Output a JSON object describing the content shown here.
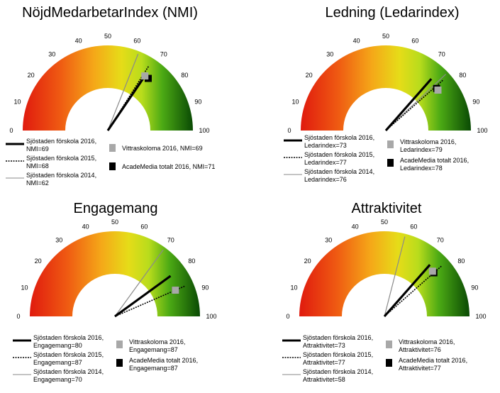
{
  "chart_data": [
    {
      "type": "gauge",
      "title": "NöjdMedarbetarIndex  (NMI)",
      "range": [
        0,
        100
      ],
      "ticks": [
        "0",
        "10",
        "20",
        "30",
        "40",
        "50",
        "60",
        "70",
        "80",
        "90",
        "100"
      ],
      "series": [
        {
          "name": "Sjöstaden förskola 2016, NMI=69",
          "value": 69,
          "style": "thick"
        },
        {
          "name": "Sjöstaden förskola 2015, NMI=68",
          "value": 68,
          "style": "dotted"
        },
        {
          "name": "Sjöstaden förskola 2014, NMI=62",
          "value": 62,
          "style": "thin"
        },
        {
          "name": "Vittraskoloma 2016, NMI=69",
          "value": 69,
          "style": "grey-square"
        },
        {
          "name": "AcadeMedia totalt 2016, NMI=71",
          "value": 71,
          "style": "black-square"
        }
      ]
    },
    {
      "type": "gauge",
      "title": "Ledning  (Ledarindex)",
      "range": [
        0,
        100
      ],
      "ticks": [
        "0",
        "10",
        "20",
        "30",
        "40",
        "50",
        "60",
        "70",
        "80",
        "90",
        "100"
      ],
      "series": [
        {
          "name": "Sjöstaden förskola 2016, Ledarindex=73",
          "value": 73,
          "style": "thick"
        },
        {
          "name": "Sjöstaden förskola 2015, Ledarindex=77",
          "value": 77,
          "style": "dotted"
        },
        {
          "name": "Sjöstaden förskola 2014, Ledarindex=76",
          "value": 76,
          "style": "thin"
        },
        {
          "name": "Vittraskoloma 2016, Ledarindex=79",
          "value": 79,
          "style": "grey-square"
        },
        {
          "name": "AcadeMedia totalt 2016, Ledarindex=78",
          "value": 78,
          "style": "black-square"
        }
      ]
    },
    {
      "type": "gauge",
      "title": "Engagemang",
      "range": [
        0,
        100
      ],
      "ticks": [
        "0",
        "10",
        "20",
        "30",
        "40",
        "50",
        "60",
        "70",
        "80",
        "90",
        "100"
      ],
      "series": [
        {
          "name": "Sjöstaden förskola 2016, Engagemang=80",
          "value": 80,
          "style": "thick"
        },
        {
          "name": "Sjöstaden förskola 2015, Engagemang=87",
          "value": 87,
          "style": "dotted"
        },
        {
          "name": "Sjöstaden förskola 2014, Engagemang=70",
          "value": 70,
          "style": "thin"
        },
        {
          "name": "Vittraskoloma 2016, Engagemang=87",
          "value": 87,
          "style": "grey-square"
        },
        {
          "name": "AcadeMedia totalt 2016, Engagemang=87",
          "value": 87,
          "style": "black-square"
        }
      ]
    },
    {
      "type": "gauge",
      "title": "Attraktivitet",
      "range": [
        0,
        100
      ],
      "ticks": [
        "0",
        "10",
        "20",
        "30",
        "40",
        "50",
        "60",
        "70",
        "80",
        "90",
        "100"
      ],
      "series": [
        {
          "name": "Sjöstaden förskola 2016, Attraktivitet=73",
          "value": 73,
          "style": "thick"
        },
        {
          "name": "Sjöstaden förskola 2015, Attraktivitet=77",
          "value": 77,
          "style": "dotted"
        },
        {
          "name": "Sjöstaden förskola 2014, Attraktivitet=58",
          "value": 58,
          "style": "thin"
        },
        {
          "name": "Vittraskoloma 2016, Attraktivitet=76",
          "value": 76,
          "style": "grey-square"
        },
        {
          "name": "AcadeMedia totalt 2016, Attraktivitet=77",
          "value": 77,
          "style": "black-square"
        }
      ]
    }
  ]
}
